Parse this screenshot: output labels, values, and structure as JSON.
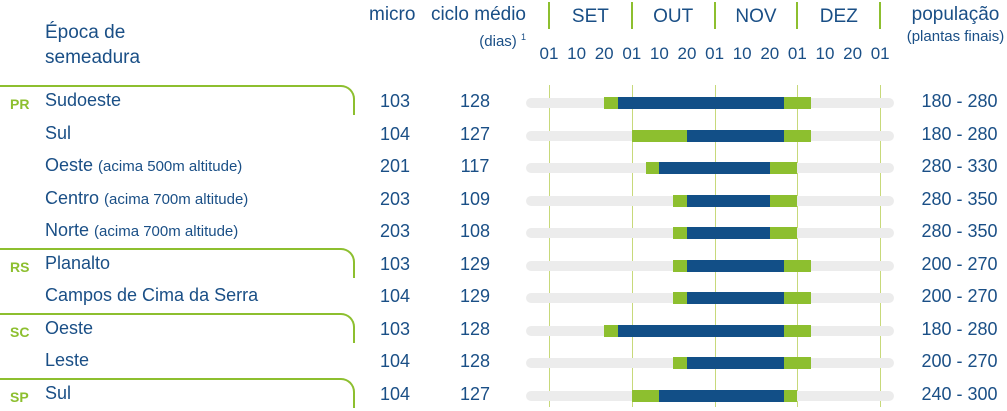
{
  "header": {
    "epoca_line1": "Época de",
    "epoca_line2": "semeadura",
    "micro": "micro",
    "ciclo_line1": "ciclo médio",
    "ciclo_line2": "(dias)",
    "ciclo_sup": "1",
    "pop_line1": "população",
    "pop_line2": "(plantas finais)"
  },
  "chart_data": {
    "type": "gantt",
    "months": [
      "SET",
      "OUT",
      "NOV",
      "DEZ"
    ],
    "days": [
      "01",
      "10",
      "20",
      "01",
      "10",
      "20",
      "01",
      "10",
      "20",
      "01",
      "10",
      "20",
      "01"
    ],
    "colors": {
      "recommended": "#124f87",
      "tolerated": "#8dbf2f",
      "track": "#ececec",
      "accent": "#8dbf2f"
    },
    "rows": [
      {
        "state": "PR",
        "region": "Sudoeste",
        "note": "",
        "micro": "103",
        "ciclo": "128",
        "pop": "180 - 280",
        "green_start": 4,
        "blue_start": 5,
        "blue_end": 17,
        "green_end": 19
      },
      {
        "state": "",
        "region": "Sul",
        "note": "",
        "micro": "104",
        "ciclo": "127",
        "pop": "180 - 280",
        "green_start": 6,
        "blue_start": 10,
        "blue_end": 17,
        "green_end": 19
      },
      {
        "state": "",
        "region": "Oeste",
        "note": "(acima 500m altitude)",
        "micro": "201",
        "ciclo": "117",
        "pop": "280 - 330",
        "green_start": 7,
        "blue_start": 8,
        "blue_end": 16,
        "green_end": 18
      },
      {
        "state": "",
        "region": "Centro",
        "note": "(acima 700m altitude)",
        "micro": "203",
        "ciclo": "109",
        "pop": "280 - 350",
        "green_start": 9,
        "blue_start": 10,
        "blue_end": 16,
        "green_end": 18
      },
      {
        "state": "",
        "region": "Norte",
        "note": "(acima 700m altitude)",
        "micro": "203",
        "ciclo": "108",
        "pop": "280 - 350",
        "green_start": 9,
        "blue_start": 10,
        "blue_end": 16,
        "green_end": 18
      },
      {
        "state": "RS",
        "region": "Planalto",
        "note": "",
        "micro": "103",
        "ciclo": "129",
        "pop": "200 - 270",
        "green_start": 9,
        "blue_start": 10,
        "blue_end": 17,
        "green_end": 19
      },
      {
        "state": "",
        "region": "Campos de Cima da Serra",
        "note": "",
        "micro": "104",
        "ciclo": "129",
        "pop": "200 - 270",
        "green_start": 9,
        "blue_start": 10,
        "blue_end": 17,
        "green_end": 19
      },
      {
        "state": "SC",
        "region": "Oeste",
        "note": "",
        "micro": "103",
        "ciclo": "128",
        "pop": "180 - 280",
        "green_start": 4,
        "blue_start": 5,
        "blue_end": 17,
        "green_end": 19
      },
      {
        "state": "",
        "region": "Leste",
        "note": "",
        "micro": "104",
        "ciclo": "128",
        "pop": "200 - 270",
        "green_start": 9,
        "blue_start": 10,
        "blue_end": 17,
        "green_end": 19
      },
      {
        "state": "SP",
        "region": "Sul",
        "note": "",
        "micro": "104",
        "ciclo": "127",
        "pop": "240 - 300",
        "green_start": 6,
        "blue_start": 8,
        "blue_end": 17,
        "green_end": 18
      }
    ]
  }
}
